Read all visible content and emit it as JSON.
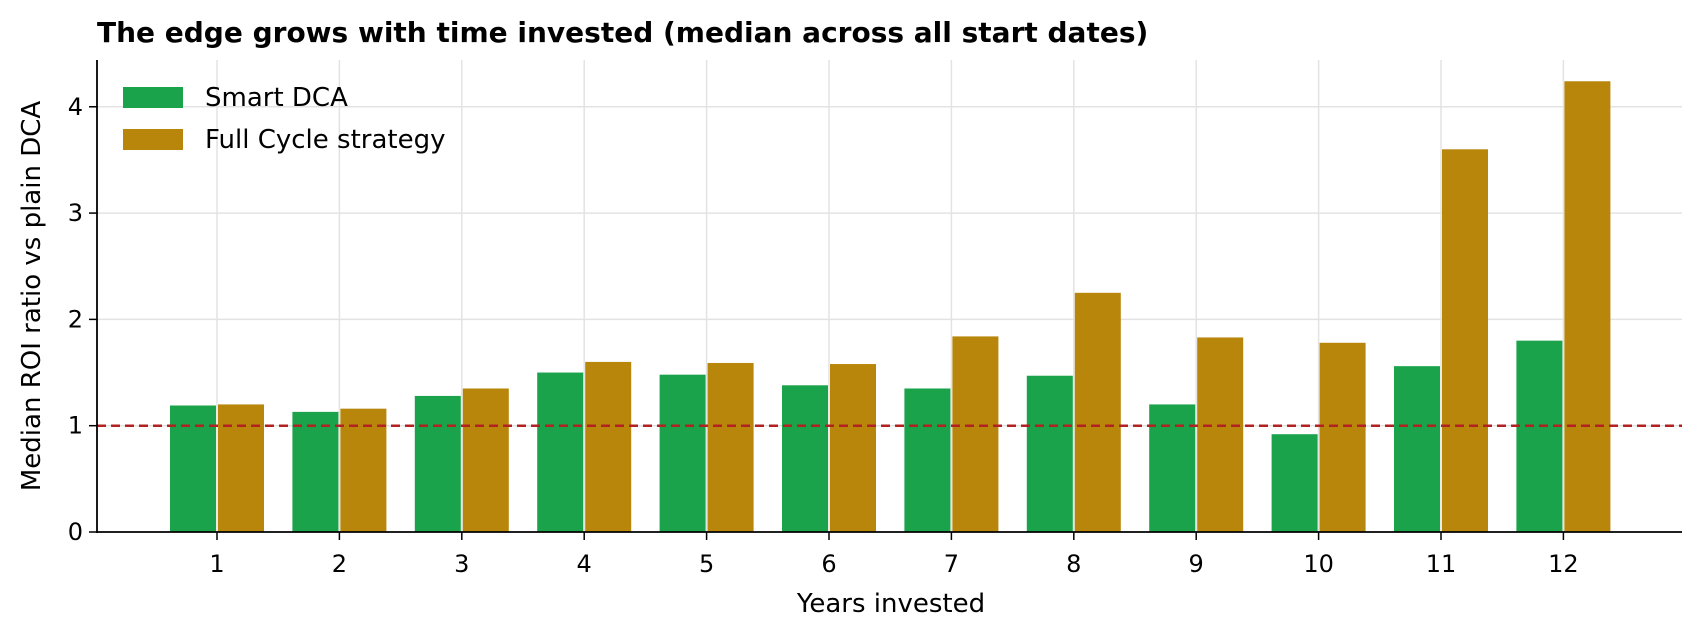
{
  "chart_data": {
    "type": "bar",
    "title": "The edge grows with time invested (median across all start dates)",
    "xlabel": "Years invested",
    "ylabel": "Median ROI ratio vs plain DCA",
    "categories": [
      "1",
      "2",
      "3",
      "4",
      "5",
      "6",
      "7",
      "8",
      "9",
      "10",
      "11",
      "12"
    ],
    "series": [
      {
        "name": "Smart DCA",
        "color": "#1aa34a",
        "values": [
          1.19,
          1.13,
          1.28,
          1.5,
          1.48,
          1.38,
          1.35,
          1.47,
          1.2,
          0.92,
          1.56,
          1.8
        ]
      },
      {
        "name": "Full Cycle strategy",
        "color": "#b8860b",
        "values": [
          1.2,
          1.16,
          1.35,
          1.6,
          1.59,
          1.58,
          1.84,
          2.25,
          1.83,
          1.78,
          3.6,
          4.24
        ]
      }
    ],
    "ylim": [
      0,
      4.44
    ],
    "yticks": [
      "0",
      "1",
      "2",
      "3",
      "4"
    ],
    "reference_line": {
      "y": 1,
      "style": "dashed",
      "color": "#b22222"
    },
    "grid": true,
    "legend_position": "top-left"
  }
}
